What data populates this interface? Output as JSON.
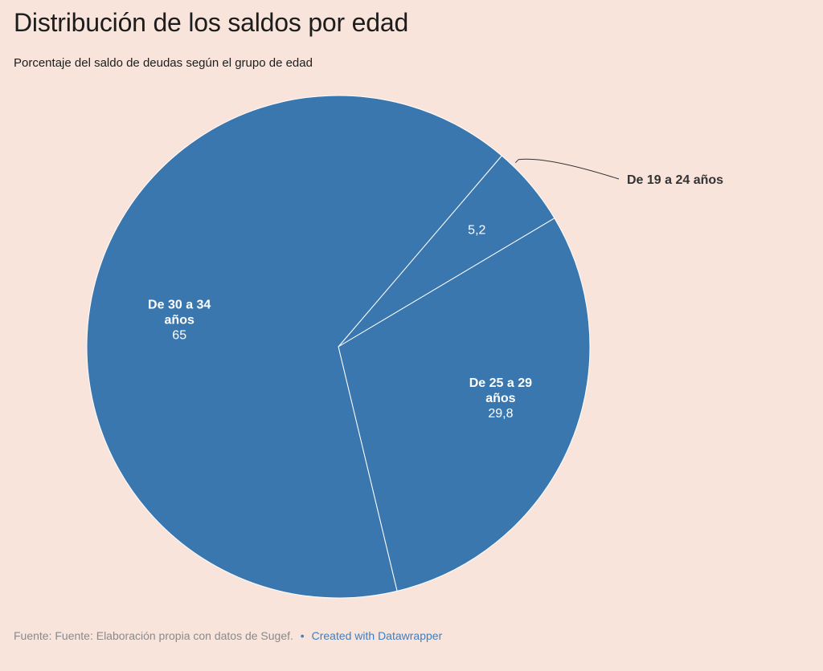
{
  "title": "Distribución de los saldos por edad",
  "subtitle": "Porcentaje del saldo de deudas según el grupo de edad",
  "footer": {
    "source": "Fuente: Fuente: Elaboración propia con datos de Sugef.",
    "separator": "•",
    "credit": "Created with Datawrapper"
  },
  "colors": {
    "slice": "#3a77af",
    "background": "#f8e4db",
    "slice_border": "#ffffff"
  },
  "chart_data": {
    "type": "pie",
    "title": "Distribución de los saldos por edad",
    "subtitle": "Porcentaje del saldo de deudas según el grupo de edad",
    "slices": [
      {
        "label_lines": [
          "De 19 a 24 años"
        ],
        "value": 5.2,
        "value_label": "5,2",
        "label_outside": true
      },
      {
        "label_lines": [
          "De 25 a 29",
          "años"
        ],
        "value": 29.8,
        "value_label": "29,8",
        "label_outside": false
      },
      {
        "label_lines": [
          "De 30 a 34",
          "años"
        ],
        "value": 65,
        "value_label": "65",
        "label_outside": false
      }
    ]
  }
}
